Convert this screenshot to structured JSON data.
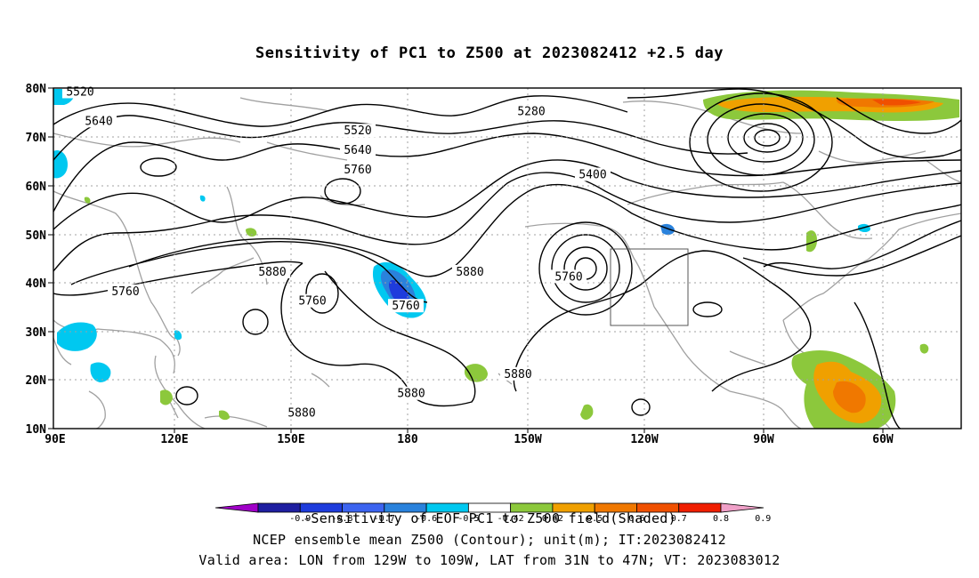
{
  "title": "Sensitivity of PC1 to Z500 at 2023082412 +2.5 day",
  "lat_labels": [
    "80N",
    "70N",
    "60N",
    "50N",
    "40N",
    "30N",
    "20N",
    "10N"
  ],
  "lon_labels": [
    "90E",
    "120E",
    "150E",
    "180",
    "150W",
    "120W",
    "90W",
    "60W"
  ],
  "contour_labels": [
    {
      "text": "5520",
      "lat": 79,
      "lon": 100
    },
    {
      "text": "5640",
      "lat": 73,
      "lon": 107
    },
    {
      "text": "5520",
      "lat": 71,
      "lon": 204
    },
    {
      "text": "5640",
      "lat": 67,
      "lon": 204
    },
    {
      "text": "5760",
      "lat": 63,
      "lon": 204
    },
    {
      "text": "5280",
      "lat": 75,
      "lon": 269
    },
    {
      "text": "5400",
      "lat": 62,
      "lon": 292
    },
    {
      "text": "5880",
      "lat": 42,
      "lon": 172
    },
    {
      "text": "5760",
      "lat": 38,
      "lon": 117
    },
    {
      "text": "5760",
      "lat": 36,
      "lon": 187
    },
    {
      "text": "5760",
      "lat": 35,
      "lon": 222
    },
    {
      "text": "5880",
      "lat": 42,
      "lon": 246
    },
    {
      "text": "5760",
      "lat": 41,
      "lon": 283
    },
    {
      "text": "5880",
      "lat": 21,
      "lon": 264
    },
    {
      "text": "5880",
      "lat": 17,
      "lon": 224
    },
    {
      "text": "5880",
      "lat": 13,
      "lon": 183
    }
  ],
  "colorbar": {
    "labels": [
      "-0.9",
      "-0.8",
      "-0.7",
      "-0.6",
      "-0.5",
      "-0.42",
      "0.42",
      "0.5",
      "0.6",
      "0.7",
      "0.8",
      "0.9"
    ],
    "colors": [
      "#a000c8",
      "#1e1ea0",
      "#1e3cdc",
      "#3c64f0",
      "#2a82dc",
      "#00c8f0",
      "#ffffff",
      "#8cc83c",
      "#f0a000",
      "#f07800",
      "#f05000",
      "#f01e00",
      "#f0a0c8"
    ]
  },
  "captions": {
    "line1": "-Sensitivity of EOF PC1 to Z500 field(Shaded)",
    "line2": "NCEP ensemble mean Z500 (Contour); unit(m); IT:2023082412",
    "line3": "Valid area: LON from 129W to 109W, LAT from 31N to 47N; VT: 2023083012"
  },
  "valid_area": {
    "lon_west": "129W",
    "lon_east": "109W",
    "lat_south": "31N",
    "lat_north": "47N"
  }
}
